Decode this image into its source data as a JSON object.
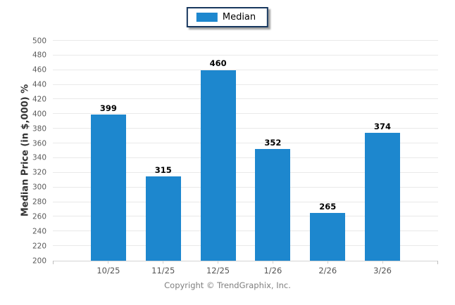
{
  "legend": {
    "items": [
      {
        "label": "Median",
        "color": "#1d87ce"
      }
    ]
  },
  "chart_data": {
    "type": "bar",
    "categories": [
      "10/25",
      "11/25",
      "12/25",
      "1/26",
      "2/26",
      "3/26"
    ],
    "series": [
      {
        "name": "Median",
        "values": [
          399,
          315,
          460,
          352,
          265,
          374
        ],
        "color": "#1d87ce"
      }
    ],
    "title": "",
    "xlabel": "",
    "ylabel": "Median Price (in $,000) %",
    "ylim": [
      200,
      500
    ],
    "ytick_step": 20,
    "grid": "horizontal",
    "legend_position": "top-center",
    "value_labels": true
  },
  "colors": {
    "bar": "#1d87ce",
    "gridline": "#e9e9e9",
    "axis_line": "#d4d4d4",
    "tick_text": "#5a5a5a",
    "value_text": "#000000",
    "legend_border": "#17375e",
    "copyright_text": "#7f7f7f"
  },
  "footer": {
    "copyright": "Copyright © TrendGraphix, Inc."
  }
}
